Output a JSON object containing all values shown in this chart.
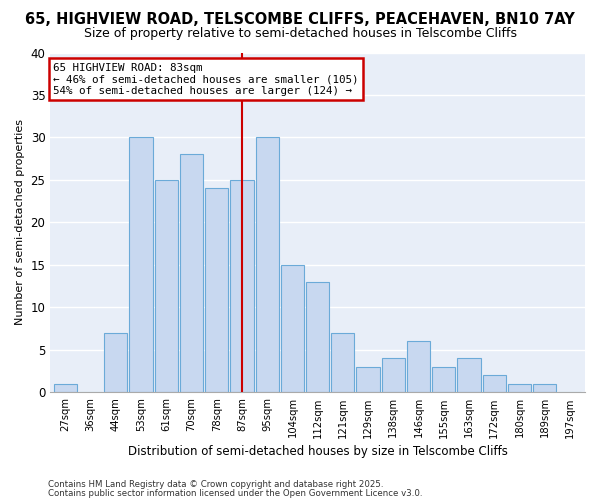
{
  "title1": "65, HIGHVIEW ROAD, TELSCOMBE CLIFFS, PEACEHAVEN, BN10 7AY",
  "title2": "Size of property relative to semi-detached houses in Telscombe Cliffs",
  "xlabel": "Distribution of semi-detached houses by size in Telscombe Cliffs",
  "ylabel": "Number of semi-detached properties",
  "bin_labels": [
    "27sqm",
    "36sqm",
    "44sqm",
    "53sqm",
    "61sqm",
    "70sqm",
    "78sqm",
    "87sqm",
    "95sqm",
    "104sqm",
    "112sqm",
    "121sqm",
    "129sqm",
    "138sqm",
    "146sqm",
    "155sqm",
    "163sqm",
    "172sqm",
    "180sqm",
    "189sqm",
    "197sqm"
  ],
  "bin_values": [
    1,
    0,
    7,
    30,
    25,
    28,
    24,
    25,
    30,
    15,
    13,
    7,
    3,
    4,
    6,
    3,
    4,
    2,
    1,
    1,
    0
  ],
  "bar_color": "#c8d8f0",
  "bar_edge_color": "#6baad8",
  "highlight_bin_index": 7,
  "annotation_title": "65 HIGHVIEW ROAD: 83sqm",
  "annotation_line2": "← 46% of semi-detached houses are smaller (105)",
  "annotation_line3": "54% of semi-detached houses are larger (124) →",
  "annotation_box_color": "#ffffff",
  "annotation_box_edge": "#cc0000",
  "vline_color": "#cc0000",
  "ylim": [
    0,
    40
  ],
  "yticks": [
    0,
    5,
    10,
    15,
    20,
    25,
    30,
    35,
    40
  ],
  "footnote1": "Contains HM Land Registry data © Crown copyright and database right 2025.",
  "footnote2": "Contains public sector information licensed under the Open Government Licence v3.0.",
  "bg_color": "#ffffff",
  "plot_bg_color": "#e8eef8",
  "grid_color": "#ffffff",
  "title1_fontsize": 10.5,
  "title2_fontsize": 9.0
}
